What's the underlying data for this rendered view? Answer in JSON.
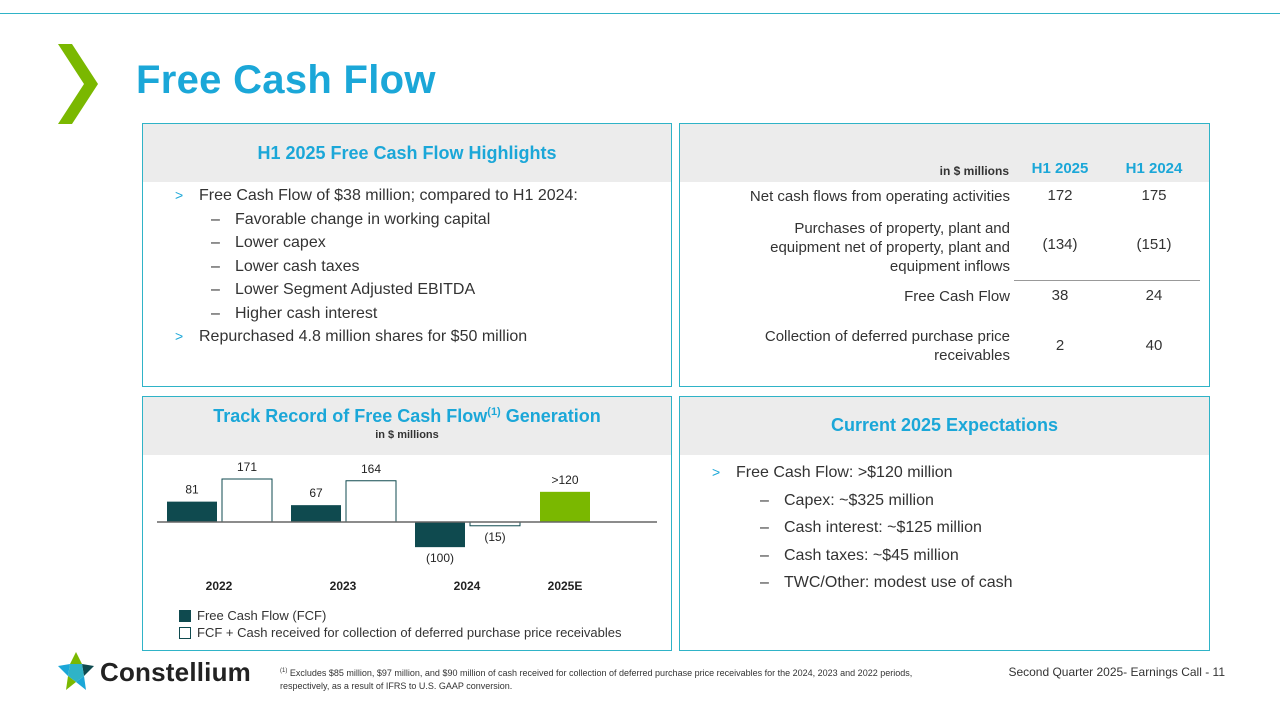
{
  "title": "Free Cash Flow",
  "colors": {
    "accent_blue": "#1ba7d8",
    "teal_line": "#2fb3c7",
    "dark_teal": "#0f4a4f",
    "green": "#7ab800",
    "panel_header_bg": "#ececec"
  },
  "highlights": {
    "heading": "H1 2025 Free Cash Flow Highlights",
    "bullet_marker": ">",
    "dash_marker": "–",
    "items": [
      {
        "text": "Free Cash Flow of $38 million; compared to H1 2024:",
        "subitems": [
          "Favorable change in working capital",
          "Lower capex",
          "Lower cash taxes",
          "Lower Segment Adjusted EBITDA",
          "Higher cash interest"
        ]
      },
      {
        "text": "Repurchased 4.8 million shares for $50 million"
      }
    ]
  },
  "table": {
    "unit_label": "in $ millions",
    "columns": [
      "H1 2025",
      "H1 2024"
    ],
    "rows": [
      {
        "label": "Net cash flows from operating activities",
        "values": [
          "172",
          "175"
        ]
      },
      {
        "label_lines": [
          "Purchases of property, plant and",
          "equipment net of property, plant and",
          "equipment inflows"
        ],
        "values": [
          "(134)",
          "(151)"
        ]
      },
      {
        "label": "Free Cash Flow",
        "values": [
          "38",
          "24"
        ]
      },
      {
        "label_lines": [
          "Collection of deferred purchase price",
          "receivables"
        ],
        "values": [
          "2",
          "40"
        ]
      }
    ]
  },
  "track_record": {
    "heading": "Track Record of Free Cash Flow",
    "heading_sup": "(1)",
    "heading_suffix": "Generation",
    "subheading": "in $ millions"
  },
  "chart_data": {
    "type": "bar",
    "categories": [
      "2022",
      "2023",
      "2024",
      "2025E"
    ],
    "series": [
      {
        "name": "Free Cash Flow (FCF)",
        "values": [
          81,
          67,
          -100,
          120
        ],
        "labels": [
          "81",
          "67",
          "(100)",
          ">120"
        ]
      },
      {
        "name": "FCF + Cash received for collection of deferred purchase price receivables",
        "values": [
          171,
          164,
          -15,
          null
        ],
        "labels": [
          "171",
          "164",
          "(15)",
          ""
        ]
      }
    ],
    "highlight_color_2025E": "#7ab800",
    "legend_position": "bottom-left"
  },
  "expectations": {
    "heading": "Current 2025 Expectations",
    "bullet_marker": ">",
    "dash_marker": "–",
    "main": "Free Cash Flow: >$120 million",
    "subitems": [
      "Capex: ~$325 million",
      "Cash interest: ~$125 million",
      "Cash taxes: ~$45 million",
      "TWC/Other: modest use of cash"
    ]
  },
  "footer": {
    "company": "Constellium",
    "footnote_marker": "(1)",
    "footnote": "Excludes $85 million, $97 million, and $90 million of cash received for collection of deferred purchase price receivables for the 2024, 2023 and 2022 periods, respectively, as a result of IFRS to U.S. GAAP conversion.",
    "page_label": "Second Quarter 2025- Earnings Call - 11"
  }
}
